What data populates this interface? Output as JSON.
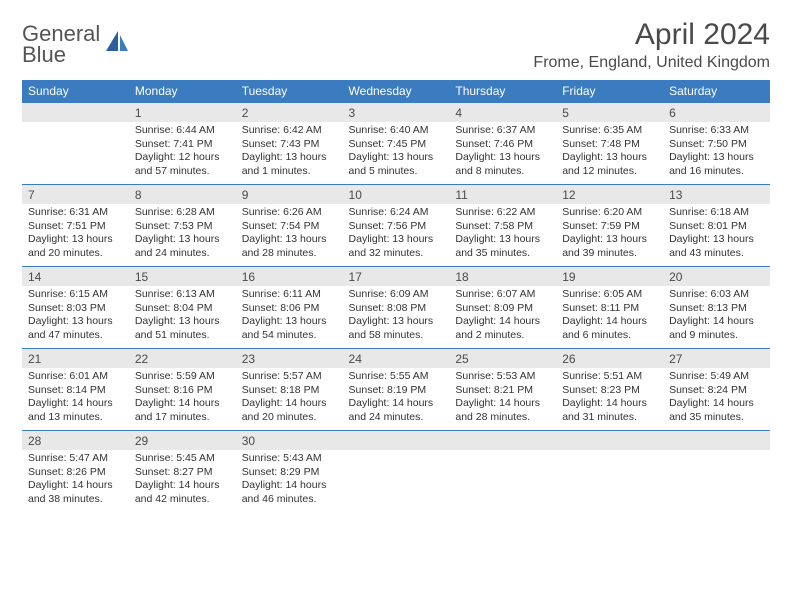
{
  "logo": {
    "line1": "General",
    "line2": "Blue"
  },
  "title": "April 2024",
  "location": "Frome, England, United Kingdom",
  "colors": {
    "header_bg": "#3b7bbf",
    "header_text": "#ffffff",
    "daynum_bg": "#e8e8e8",
    "border": "#3b7bbf",
    "text": "#333333",
    "title_text": "#4a4a4a"
  },
  "daysOfWeek": [
    "Sunday",
    "Monday",
    "Tuesday",
    "Wednesday",
    "Thursday",
    "Friday",
    "Saturday"
  ],
  "weeks": [
    [
      {
        "day": "",
        "sunrise": "",
        "sunset": "",
        "daylight": ""
      },
      {
        "day": "1",
        "sunrise": "6:44 AM",
        "sunset": "7:41 PM",
        "daylight": "12 hours and 57 minutes."
      },
      {
        "day": "2",
        "sunrise": "6:42 AM",
        "sunset": "7:43 PM",
        "daylight": "13 hours and 1 minutes."
      },
      {
        "day": "3",
        "sunrise": "6:40 AM",
        "sunset": "7:45 PM",
        "daylight": "13 hours and 5 minutes."
      },
      {
        "day": "4",
        "sunrise": "6:37 AM",
        "sunset": "7:46 PM",
        "daylight": "13 hours and 8 minutes."
      },
      {
        "day": "5",
        "sunrise": "6:35 AM",
        "sunset": "7:48 PM",
        "daylight": "13 hours and 12 minutes."
      },
      {
        "day": "6",
        "sunrise": "6:33 AM",
        "sunset": "7:50 PM",
        "daylight": "13 hours and 16 minutes."
      }
    ],
    [
      {
        "day": "7",
        "sunrise": "6:31 AM",
        "sunset": "7:51 PM",
        "daylight": "13 hours and 20 minutes."
      },
      {
        "day": "8",
        "sunrise": "6:28 AM",
        "sunset": "7:53 PM",
        "daylight": "13 hours and 24 minutes."
      },
      {
        "day": "9",
        "sunrise": "6:26 AM",
        "sunset": "7:54 PM",
        "daylight": "13 hours and 28 minutes."
      },
      {
        "day": "10",
        "sunrise": "6:24 AM",
        "sunset": "7:56 PM",
        "daylight": "13 hours and 32 minutes."
      },
      {
        "day": "11",
        "sunrise": "6:22 AM",
        "sunset": "7:58 PM",
        "daylight": "13 hours and 35 minutes."
      },
      {
        "day": "12",
        "sunrise": "6:20 AM",
        "sunset": "7:59 PM",
        "daylight": "13 hours and 39 minutes."
      },
      {
        "day": "13",
        "sunrise": "6:18 AM",
        "sunset": "8:01 PM",
        "daylight": "13 hours and 43 minutes."
      }
    ],
    [
      {
        "day": "14",
        "sunrise": "6:15 AM",
        "sunset": "8:03 PM",
        "daylight": "13 hours and 47 minutes."
      },
      {
        "day": "15",
        "sunrise": "6:13 AM",
        "sunset": "8:04 PM",
        "daylight": "13 hours and 51 minutes."
      },
      {
        "day": "16",
        "sunrise": "6:11 AM",
        "sunset": "8:06 PM",
        "daylight": "13 hours and 54 minutes."
      },
      {
        "day": "17",
        "sunrise": "6:09 AM",
        "sunset": "8:08 PM",
        "daylight": "13 hours and 58 minutes."
      },
      {
        "day": "18",
        "sunrise": "6:07 AM",
        "sunset": "8:09 PM",
        "daylight": "14 hours and 2 minutes."
      },
      {
        "day": "19",
        "sunrise": "6:05 AM",
        "sunset": "8:11 PM",
        "daylight": "14 hours and 6 minutes."
      },
      {
        "day": "20",
        "sunrise": "6:03 AM",
        "sunset": "8:13 PM",
        "daylight": "14 hours and 9 minutes."
      }
    ],
    [
      {
        "day": "21",
        "sunrise": "6:01 AM",
        "sunset": "8:14 PM",
        "daylight": "14 hours and 13 minutes."
      },
      {
        "day": "22",
        "sunrise": "5:59 AM",
        "sunset": "8:16 PM",
        "daylight": "14 hours and 17 minutes."
      },
      {
        "day": "23",
        "sunrise": "5:57 AM",
        "sunset": "8:18 PM",
        "daylight": "14 hours and 20 minutes."
      },
      {
        "day": "24",
        "sunrise": "5:55 AM",
        "sunset": "8:19 PM",
        "daylight": "14 hours and 24 minutes."
      },
      {
        "day": "25",
        "sunrise": "5:53 AM",
        "sunset": "8:21 PM",
        "daylight": "14 hours and 28 minutes."
      },
      {
        "day": "26",
        "sunrise": "5:51 AM",
        "sunset": "8:23 PM",
        "daylight": "14 hours and 31 minutes."
      },
      {
        "day": "27",
        "sunrise": "5:49 AM",
        "sunset": "8:24 PM",
        "daylight": "14 hours and 35 minutes."
      }
    ],
    [
      {
        "day": "28",
        "sunrise": "5:47 AM",
        "sunset": "8:26 PM",
        "daylight": "14 hours and 38 minutes."
      },
      {
        "day": "29",
        "sunrise": "5:45 AM",
        "sunset": "8:27 PM",
        "daylight": "14 hours and 42 minutes."
      },
      {
        "day": "30",
        "sunrise": "5:43 AM",
        "sunset": "8:29 PM",
        "daylight": "14 hours and 46 minutes."
      },
      {
        "day": "",
        "sunrise": "",
        "sunset": "",
        "daylight": ""
      },
      {
        "day": "",
        "sunrise": "",
        "sunset": "",
        "daylight": ""
      },
      {
        "day": "",
        "sunrise": "",
        "sunset": "",
        "daylight": ""
      },
      {
        "day": "",
        "sunrise": "",
        "sunset": "",
        "daylight": ""
      }
    ]
  ]
}
